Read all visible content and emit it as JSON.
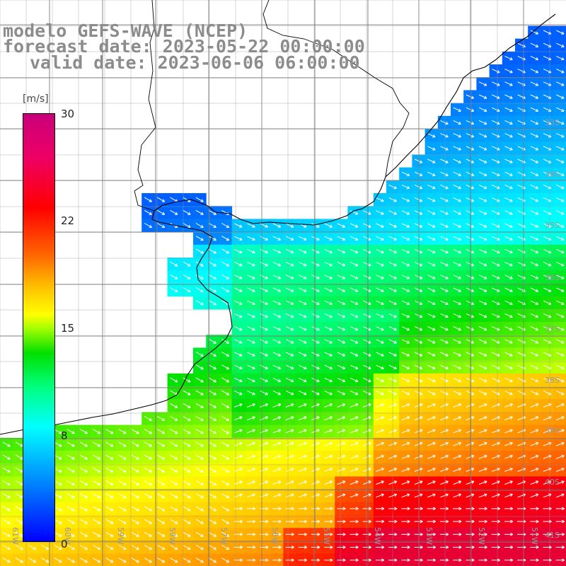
{
  "title": {
    "line1": "modelo GEFS-WAVE (NCEP)",
    "line2": "forecast date: 2023-05-22 00:00:00",
    "line3": "valid date: 2023-06-06 06:00:00"
  },
  "colorbar": {
    "unit": "[m/s]",
    "ticks": [
      {
        "label": "30",
        "value": 30
      },
      {
        "label": "22",
        "value": 22
      },
      {
        "label": "15",
        "value": 15
      },
      {
        "label": "8",
        "value": 8
      },
      {
        "label": "0",
        "value": 0
      }
    ],
    "range": [
      0,
      30
    ],
    "colors": [
      "#0000ff",
      "#007fff",
      "#00ffff",
      "#00ff80",
      "#00e000",
      "#aaff00",
      "#ffff00",
      "#ffbb00",
      "#ff6600",
      "#ff0000",
      "#c8007a"
    ]
  },
  "map": {
    "lat_labels": [
      "33S",
      "34S",
      "35S",
      "36S",
      "37S",
      "38S",
      "39S",
      "40S",
      "41S"
    ],
    "lon_labels": [
      "61W",
      "60W",
      "59W",
      "58W",
      "57W",
      "56W",
      "55W",
      "54W",
      "53W",
      "52W",
      "51W"
    ],
    "field": "wind speed with direction arrows"
  }
}
